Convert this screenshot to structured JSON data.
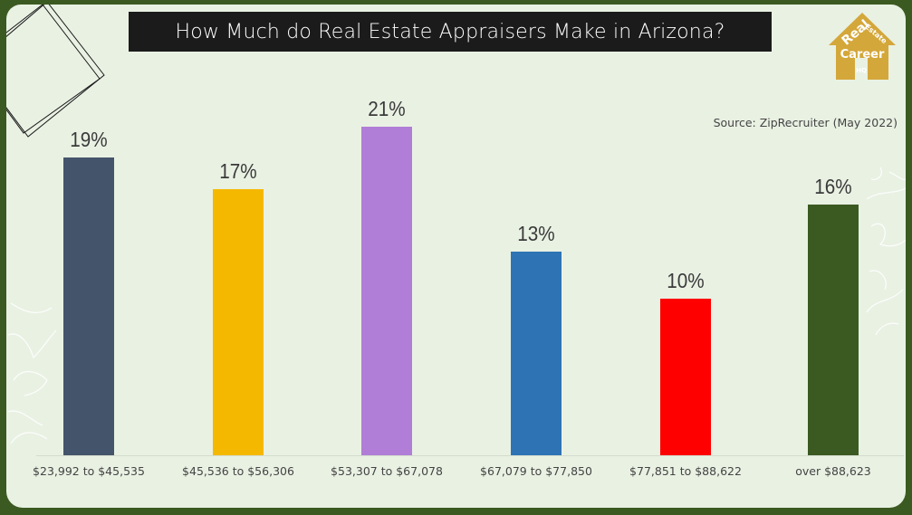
{
  "title": "How Much do Real Estate Appraisers Make in Arizona?",
  "source": "Source: ZipRecruiter (May 2022)",
  "logo": {
    "line1": "Real",
    "line2": "Estate",
    "line3": "Career",
    "line4": "HQ",
    "color": "#d4a73a"
  },
  "colors": {
    "border": "#3b5a22",
    "background": "#e9f1e3",
    "title_bg": "#1b1b1b"
  },
  "chart_data": {
    "type": "bar",
    "title": "How Much do Real Estate Appraisers Make in Arizona?",
    "subtitle": "Source: ZipRecruiter (May 2022)",
    "xlabel": "",
    "ylabel": "",
    "categories": [
      "$23,992 to $45,535",
      "$45,536 to $56,306",
      "$53,307 to $67,078",
      "$67,079 to $77,850",
      "$77,851 to $88,622",
      "over $88,623"
    ],
    "values": [
      19,
      17,
      21,
      13,
      10,
      16
    ],
    "value_labels": [
      "19%",
      "17%",
      "21%",
      "13%",
      "10%",
      "16%"
    ],
    "bar_colors": [
      "#44546a",
      "#f5b800",
      "#b07ed6",
      "#2e74b5",
      "#ff0000",
      "#3b5a22"
    ],
    "unit": "%",
    "grid": false,
    "legend": "none",
    "ylim": [
      0,
      21
    ]
  }
}
